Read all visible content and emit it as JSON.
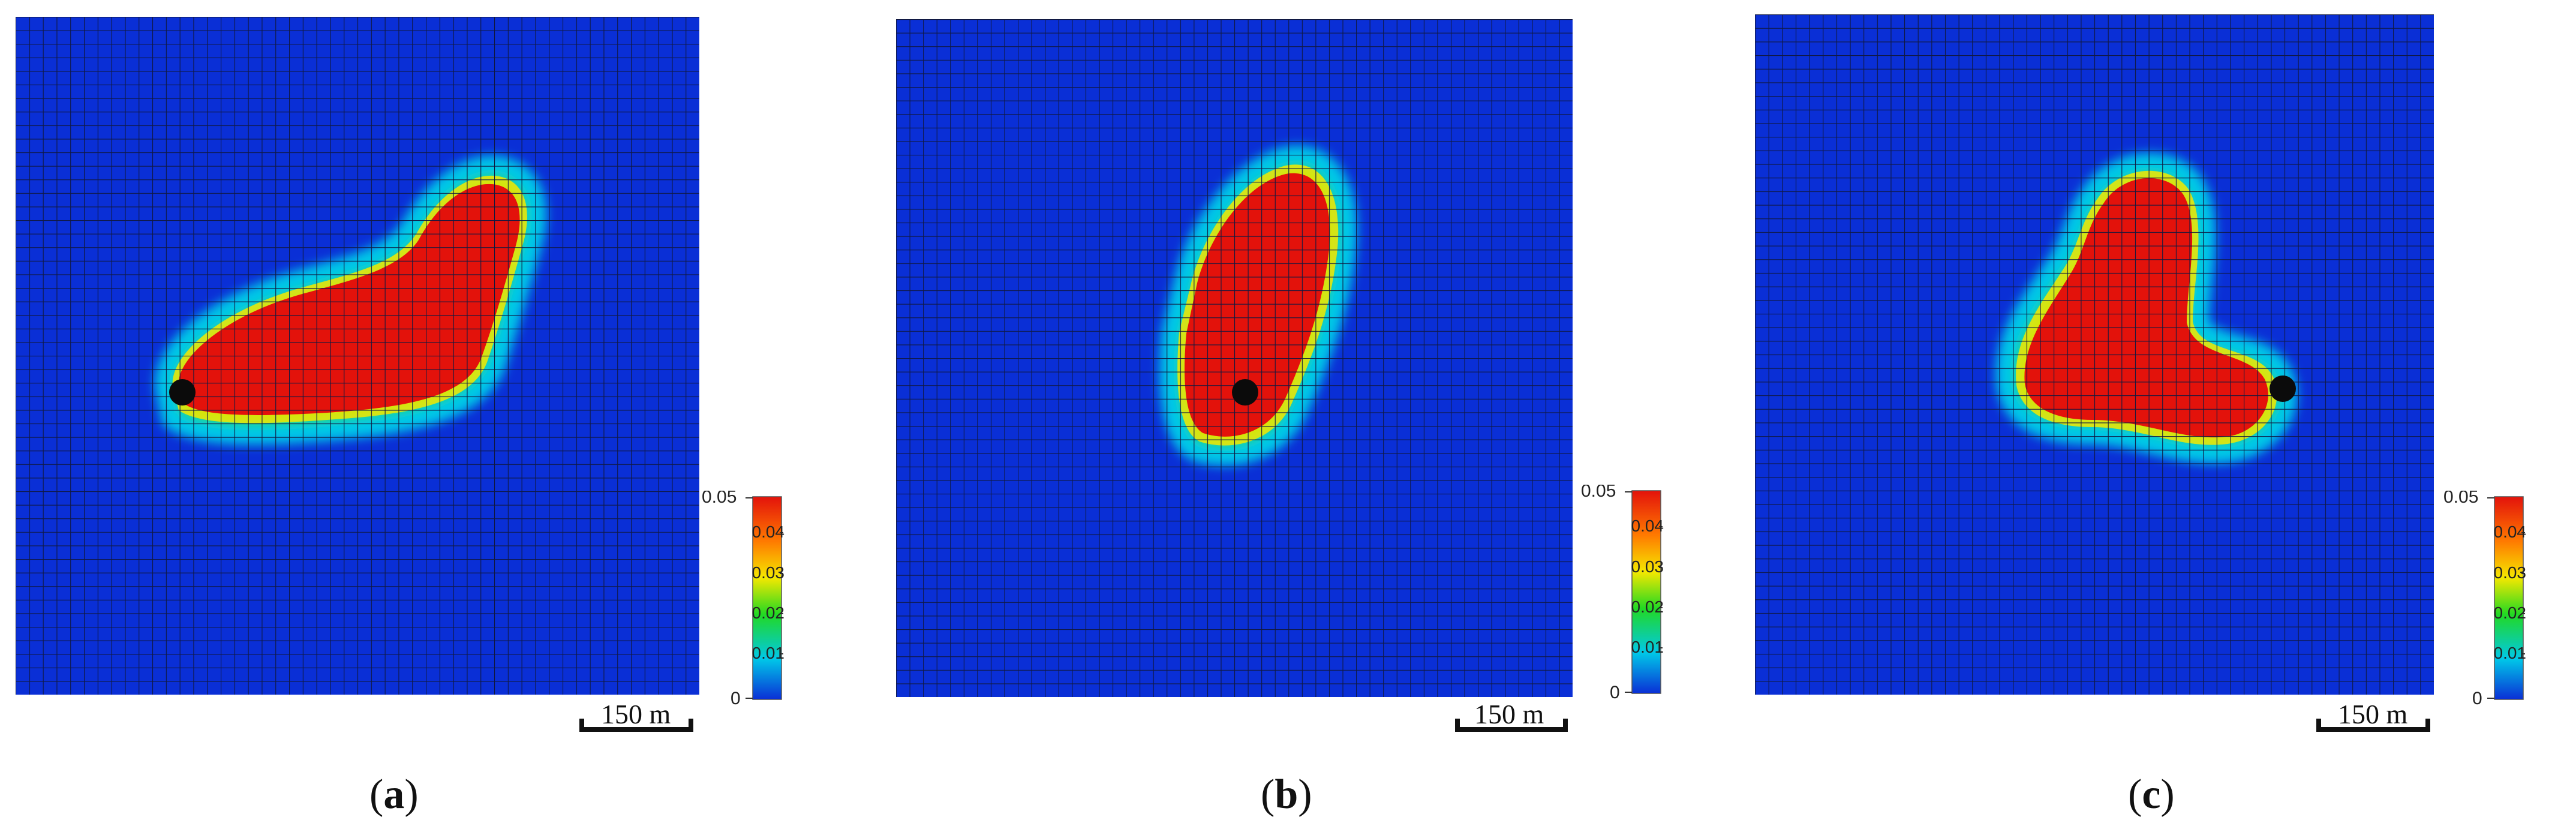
{
  "colors": {
    "background_low": "#0a2fd6",
    "grid": "#101840",
    "plume_high": "#e3120b",
    "well_marker": "#0b0b0b"
  },
  "colorbar": {
    "ticks": [
      "0.05",
      "0.04",
      "0.03",
      "0.02",
      "0.01",
      "0"
    ],
    "max": 0.05,
    "min": 0,
    "stops": [
      "#e3120b",
      "#ff7a00",
      "#f5e800",
      "#22d922",
      "#00c8e8",
      "#0a2fd6"
    ]
  },
  "scale_label": "150 m",
  "panels": [
    {
      "id": "a",
      "caption_letter": "a",
      "caption_open": "(",
      "caption_close": ")",
      "plume_shape": "elongated, extending up-right from injection well"
    },
    {
      "id": "b",
      "caption_letter": "b",
      "caption_open": "(",
      "caption_close": ")",
      "plume_shape": "compact, extending up from injection well"
    },
    {
      "id": "c",
      "caption_letter": "c",
      "caption_open": "(",
      "caption_close": ")",
      "plume_shape": "lobed, extending up-left from injection well"
    }
  ]
}
